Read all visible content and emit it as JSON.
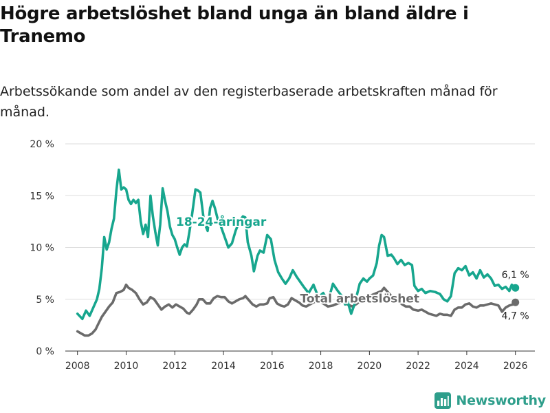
{
  "header": {
    "title": "Högre arbetslöshet bland unga än bland äldre i Tranemo",
    "subtitle": "Arbetssökande som andel av den registerbaserade arbetskraften månad för månad."
  },
  "brand": {
    "name": "Newsworthy",
    "icon": "bar-chart-logo-icon"
  },
  "colors": {
    "youth": "#17a68e",
    "total": "#6b6b6b",
    "grid": "#dddddd",
    "brand": "#2e9e8b"
  },
  "chart_data": {
    "type": "line",
    "title": "Högre arbetslöshet bland unga än bland äldre i Tranemo",
    "xlabel": "",
    "ylabel": "",
    "xlim": [
      2007.5,
      2026.8
    ],
    "ylim": [
      0,
      20
    ],
    "x_ticks": [
      2008,
      2010,
      2012,
      2014,
      2016,
      2018,
      2020,
      2022,
      2024,
      2026
    ],
    "x_tick_labels": [
      "2008",
      "2010",
      "2012",
      "2014",
      "2016",
      "2018",
      "2020",
      "2022",
      "2024",
      "2026"
    ],
    "y_ticks": [
      0,
      5,
      10,
      15,
      20
    ],
    "y_tick_labels": [
      "0 %",
      "5 %",
      "10 %",
      "15 %",
      "20 %"
    ],
    "grid": true,
    "series": [
      {
        "name": "18–24-åringar",
        "label": "18-24-åringar",
        "color": "#17a68e",
        "end_label": "6,1 %",
        "points": [
          [
            2008.0,
            3.6
          ],
          [
            2008.2,
            3.1
          ],
          [
            2008.35,
            3.9
          ],
          [
            2008.5,
            3.4
          ],
          [
            2008.65,
            4.2
          ],
          [
            2008.8,
            5.0
          ],
          [
            2008.9,
            6.0
          ],
          [
            2009.0,
            8.0
          ],
          [
            2009.1,
            11.0
          ],
          [
            2009.2,
            9.8
          ],
          [
            2009.3,
            10.5
          ],
          [
            2009.4,
            11.8
          ],
          [
            2009.5,
            12.8
          ],
          [
            2009.6,
            15.5
          ],
          [
            2009.7,
            17.5
          ],
          [
            2009.8,
            15.6
          ],
          [
            2009.9,
            15.8
          ],
          [
            2010.0,
            15.6
          ],
          [
            2010.1,
            14.6
          ],
          [
            2010.2,
            14.2
          ],
          [
            2010.3,
            14.6
          ],
          [
            2010.4,
            14.3
          ],
          [
            2010.5,
            14.6
          ],
          [
            2010.6,
            12.5
          ],
          [
            2010.7,
            11.3
          ],
          [
            2010.8,
            12.2
          ],
          [
            2010.9,
            11.0
          ],
          [
            2011.0,
            15.0
          ],
          [
            2011.1,
            13.0
          ],
          [
            2011.2,
            11.5
          ],
          [
            2011.3,
            10.2
          ],
          [
            2011.4,
            12.2
          ],
          [
            2011.5,
            15.7
          ],
          [
            2011.6,
            14.5
          ],
          [
            2011.7,
            13.5
          ],
          [
            2011.8,
            12.0
          ],
          [
            2011.9,
            11.2
          ],
          [
            2012.0,
            10.8
          ],
          [
            2012.1,
            10.0
          ],
          [
            2012.2,
            9.3
          ],
          [
            2012.3,
            10.0
          ],
          [
            2012.4,
            10.3
          ],
          [
            2012.5,
            10.1
          ],
          [
            2012.6,
            11.5
          ],
          [
            2012.7,
            13.0
          ],
          [
            2012.85,
            15.6
          ],
          [
            2012.95,
            15.5
          ],
          [
            2013.05,
            15.3
          ],
          [
            2013.2,
            12.5
          ],
          [
            2013.35,
            11.6
          ],
          [
            2013.45,
            13.8
          ],
          [
            2013.55,
            14.5
          ],
          [
            2013.65,
            13.8
          ],
          [
            2013.8,
            12.4
          ],
          [
            2013.9,
            12.0
          ],
          [
            2014.05,
            11.0
          ],
          [
            2014.2,
            10.0
          ],
          [
            2014.35,
            10.4
          ],
          [
            2014.5,
            11.6
          ],
          [
            2014.65,
            12.5
          ],
          [
            2014.8,
            13.0
          ],
          [
            2014.9,
            12.9
          ],
          [
            2015.0,
            10.5
          ],
          [
            2015.15,
            9.2
          ],
          [
            2015.25,
            7.7
          ],
          [
            2015.4,
            9.2
          ],
          [
            2015.5,
            9.7
          ],
          [
            2015.65,
            9.5
          ],
          [
            2015.8,
            11.2
          ],
          [
            2015.95,
            10.8
          ],
          [
            2016.1,
            8.8
          ],
          [
            2016.25,
            7.6
          ],
          [
            2016.4,
            7.0
          ],
          [
            2016.55,
            6.5
          ],
          [
            2016.7,
            7.0
          ],
          [
            2016.85,
            7.8
          ],
          [
            2017.0,
            7.2
          ],
          [
            2017.15,
            6.7
          ],
          [
            2017.3,
            6.2
          ],
          [
            2017.5,
            5.6
          ],
          [
            2017.7,
            6.4
          ],
          [
            2017.9,
            5.2
          ],
          [
            2018.1,
            5.6
          ],
          [
            2018.3,
            4.8
          ],
          [
            2018.5,
            6.5
          ],
          [
            2018.7,
            5.8
          ],
          [
            2018.9,
            5.2
          ],
          [
            2019.0,
            4.5
          ],
          [
            2019.1,
            4.8
          ],
          [
            2019.25,
            3.6
          ],
          [
            2019.4,
            4.6
          ],
          [
            2019.6,
            6.5
          ],
          [
            2019.75,
            7.0
          ],
          [
            2019.9,
            6.7
          ],
          [
            2020.0,
            7.0
          ],
          [
            2020.15,
            7.3
          ],
          [
            2020.3,
            8.5
          ],
          [
            2020.4,
            10.2
          ],
          [
            2020.5,
            11.2
          ],
          [
            2020.6,
            11.0
          ],
          [
            2020.75,
            9.2
          ],
          [
            2020.9,
            9.3
          ],
          [
            2021.0,
            9.0
          ],
          [
            2021.15,
            8.4
          ],
          [
            2021.3,
            8.8
          ],
          [
            2021.45,
            8.3
          ],
          [
            2021.6,
            8.5
          ],
          [
            2021.75,
            8.3
          ],
          [
            2021.85,
            6.3
          ],
          [
            2022.0,
            5.8
          ],
          [
            2022.15,
            6.0
          ],
          [
            2022.3,
            5.6
          ],
          [
            2022.5,
            5.8
          ],
          [
            2022.7,
            5.7
          ],
          [
            2022.9,
            5.5
          ],
          [
            2023.05,
            5.0
          ],
          [
            2023.2,
            4.8
          ],
          [
            2023.35,
            5.3
          ],
          [
            2023.5,
            7.5
          ],
          [
            2023.65,
            8.0
          ],
          [
            2023.8,
            7.8
          ],
          [
            2023.95,
            8.2
          ],
          [
            2024.1,
            7.3
          ],
          [
            2024.25,
            7.6
          ],
          [
            2024.4,
            7.0
          ],
          [
            2024.55,
            7.8
          ],
          [
            2024.7,
            7.1
          ],
          [
            2024.85,
            7.4
          ],
          [
            2025.0,
            7.0
          ],
          [
            2025.15,
            6.3
          ],
          [
            2025.3,
            6.4
          ],
          [
            2025.45,
            6.0
          ],
          [
            2025.6,
            6.2
          ],
          [
            2025.75,
            5.8
          ],
          [
            2025.85,
            6.4
          ],
          [
            2026.0,
            6.1
          ]
        ]
      },
      {
        "name": "Total arbetslöshet",
        "label": "Total arbetslöshet",
        "color": "#6b6b6b",
        "end_label": "4,7 %",
        "points": [
          [
            2008.0,
            1.9
          ],
          [
            2008.15,
            1.7
          ],
          [
            2008.3,
            1.5
          ],
          [
            2008.45,
            1.5
          ],
          [
            2008.6,
            1.7
          ],
          [
            2008.75,
            2.1
          ],
          [
            2008.85,
            2.6
          ],
          [
            2009.0,
            3.3
          ],
          [
            2009.15,
            3.8
          ],
          [
            2009.3,
            4.3
          ],
          [
            2009.45,
            4.7
          ],
          [
            2009.6,
            5.6
          ],
          [
            2009.75,
            5.7
          ],
          [
            2009.9,
            5.9
          ],
          [
            2010.0,
            6.4
          ],
          [
            2010.1,
            6.1
          ],
          [
            2010.25,
            5.9
          ],
          [
            2010.4,
            5.6
          ],
          [
            2010.55,
            5.0
          ],
          [
            2010.7,
            4.5
          ],
          [
            2010.85,
            4.7
          ],
          [
            2011.0,
            5.2
          ],
          [
            2011.15,
            5.0
          ],
          [
            2011.3,
            4.5
          ],
          [
            2011.45,
            4.0
          ],
          [
            2011.6,
            4.3
          ],
          [
            2011.75,
            4.5
          ],
          [
            2011.9,
            4.2
          ],
          [
            2012.05,
            4.5
          ],
          [
            2012.2,
            4.3
          ],
          [
            2012.35,
            4.1
          ],
          [
            2012.5,
            3.7
          ],
          [
            2012.6,
            3.6
          ],
          [
            2012.75,
            4.0
          ],
          [
            2012.9,
            4.5
          ],
          [
            2013.0,
            5.0
          ],
          [
            2013.15,
            5.0
          ],
          [
            2013.3,
            4.6
          ],
          [
            2013.45,
            4.6
          ],
          [
            2013.6,
            5.1
          ],
          [
            2013.75,
            5.3
          ],
          [
            2013.9,
            5.2
          ],
          [
            2014.05,
            5.2
          ],
          [
            2014.2,
            4.8
          ],
          [
            2014.35,
            4.6
          ],
          [
            2014.5,
            4.8
          ],
          [
            2014.65,
            5.0
          ],
          [
            2014.8,
            5.1
          ],
          [
            2014.9,
            5.3
          ],
          [
            2015.05,
            4.9
          ],
          [
            2015.2,
            4.5
          ],
          [
            2015.35,
            4.3
          ],
          [
            2015.5,
            4.5
          ],
          [
            2015.65,
            4.5
          ],
          [
            2015.8,
            4.6
          ],
          [
            2015.9,
            5.1
          ],
          [
            2016.05,
            5.2
          ],
          [
            2016.2,
            4.6
          ],
          [
            2016.35,
            4.4
          ],
          [
            2016.5,
            4.3
          ],
          [
            2016.65,
            4.5
          ],
          [
            2016.8,
            5.1
          ],
          [
            2016.95,
            4.9
          ],
          [
            2017.1,
            4.7
          ],
          [
            2017.25,
            4.4
          ],
          [
            2017.4,
            4.3
          ],
          [
            2017.55,
            4.5
          ],
          [
            2017.7,
            4.7
          ],
          [
            2017.9,
            4.9
          ],
          [
            2018.1,
            4.6
          ],
          [
            2018.3,
            4.3
          ],
          [
            2018.5,
            4.4
          ],
          [
            2018.7,
            4.6
          ],
          [
            2018.9,
            4.7
          ],
          [
            2019.1,
            4.5
          ],
          [
            2019.3,
            4.3
          ],
          [
            2019.5,
            4.6
          ],
          [
            2019.7,
            5.0
          ],
          [
            2019.9,
            5.2
          ],
          [
            2020.1,
            5.4
          ],
          [
            2020.3,
            5.6
          ],
          [
            2020.5,
            5.8
          ],
          [
            2020.6,
            6.1
          ],
          [
            2020.75,
            5.7
          ],
          [
            2020.9,
            5.3
          ],
          [
            2021.05,
            5.0
          ],
          [
            2021.2,
            4.8
          ],
          [
            2021.35,
            4.5
          ],
          [
            2021.5,
            4.3
          ],
          [
            2021.65,
            4.3
          ],
          [
            2021.8,
            4.0
          ],
          [
            2022.0,
            3.9
          ],
          [
            2022.15,
            4.0
          ],
          [
            2022.3,
            3.8
          ],
          [
            2022.45,
            3.6
          ],
          [
            2022.6,
            3.5
          ],
          [
            2022.75,
            3.4
          ],
          [
            2022.9,
            3.6
          ],
          [
            2023.05,
            3.5
          ],
          [
            2023.2,
            3.5
          ],
          [
            2023.35,
            3.4
          ],
          [
            2023.5,
            4.0
          ],
          [
            2023.65,
            4.2
          ],
          [
            2023.8,
            4.2
          ],
          [
            2023.95,
            4.5
          ],
          [
            2024.1,
            4.6
          ],
          [
            2024.25,
            4.3
          ],
          [
            2024.4,
            4.2
          ],
          [
            2024.55,
            4.4
          ],
          [
            2024.7,
            4.4
          ],
          [
            2024.85,
            4.5
          ],
          [
            2025.0,
            4.6
          ],
          [
            2025.15,
            4.5
          ],
          [
            2025.3,
            4.4
          ],
          [
            2025.45,
            3.8
          ],
          [
            2025.6,
            4.2
          ],
          [
            2025.75,
            4.4
          ],
          [
            2025.9,
            4.5
          ],
          [
            2026.0,
            4.7
          ]
        ]
      }
    ]
  }
}
